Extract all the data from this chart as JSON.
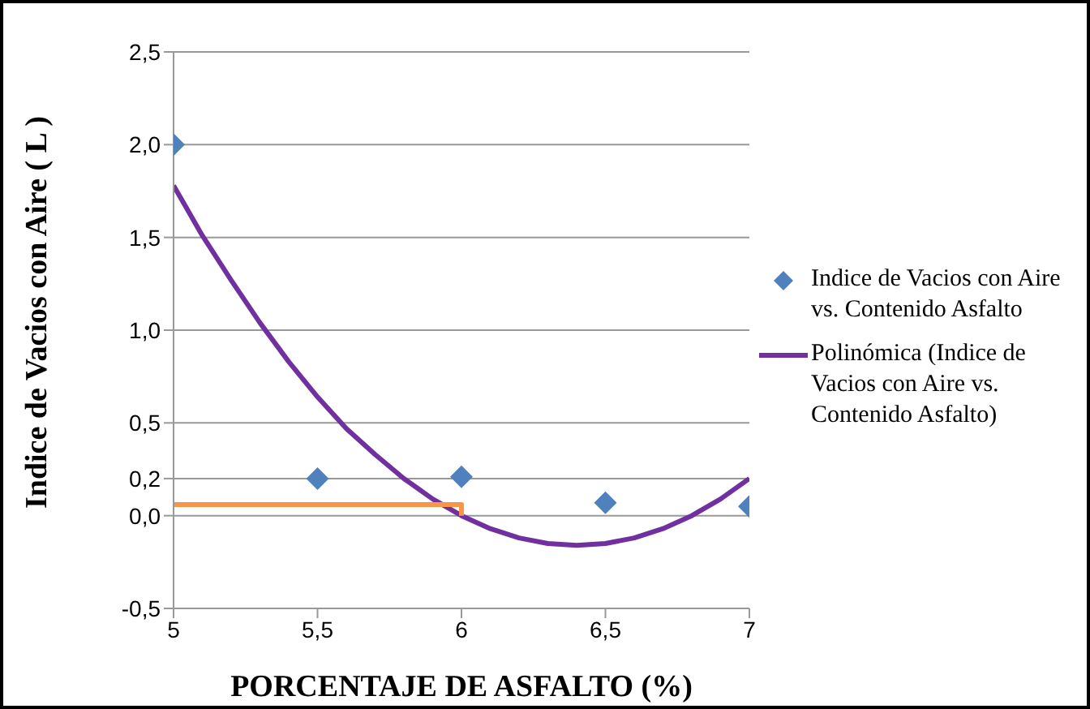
{
  "chart_data": {
    "type": "scatter",
    "xlabel": "PORCENTAJE DE ASFALTO (%)",
    "ylabel": "Indice de Vacios con Aire ( L )",
    "xlim": [
      5,
      7
    ],
    "xticks": [
      5,
      {
        "value": 5.5,
        "label": "5,5"
      },
      6,
      {
        "value": 6.5,
        "label": "6,5"
      },
      7
    ],
    "ylim": [
      -0.5,
      2.5
    ],
    "yticks": [
      {
        "value": -0.5,
        "label": "-0,5"
      },
      {
        "value": 0,
        "label": "0,0"
      },
      {
        "value": 0.2,
        "label": "0,2"
      },
      {
        "value": 0.5,
        "label": "0,5"
      },
      {
        "value": 1,
        "label": "1,0"
      },
      {
        "value": 1.5,
        "label": "1,5"
      },
      {
        "value": 2,
        "label": "2,0"
      },
      {
        "value": 2.5,
        "label": "2,5"
      }
    ],
    "grid": "y",
    "legend": "right",
    "series": [
      {
        "name": "Indice de Vacios con Aire vs. Contenido Asfalto",
        "color": "#4f81bd",
        "marker": "diamond",
        "x": [
          5,
          5.5,
          6,
          6.5,
          7
        ],
        "values": [
          2.0,
          0.2,
          0.21,
          0.07,
          0.05
        ]
      },
      {
        "type": "line",
        "name": "Polinómica (Indice de Vacios con Aire vs. Contenido Asfalto)",
        "color": "#7030a0",
        "marker": "none",
        "x": [
          5,
          5.1,
          5.2,
          5.3,
          5.4,
          5.5,
          5.6,
          5.7,
          5.8,
          5.9,
          6,
          6.1,
          6.2,
          6.3,
          6.4,
          6.5,
          6.6,
          6.7,
          6.8,
          6.9,
          7
        ],
        "values": [
          1.78,
          1.51,
          1.27,
          1.04,
          0.83,
          0.64,
          0.47,
          0.33,
          0.2,
          0.09,
          0,
          -0.07,
          -0.12,
          -0.15,
          -0.16,
          -0.15,
          -0.12,
          -0.07,
          0,
          0.09,
          0.2
        ]
      },
      {
        "type": "line",
        "color": "#f79646",
        "marker": "none",
        "x": [
          5,
          6,
          6
        ],
        "values": [
          0.06,
          0.06,
          0
        ]
      }
    ]
  }
}
